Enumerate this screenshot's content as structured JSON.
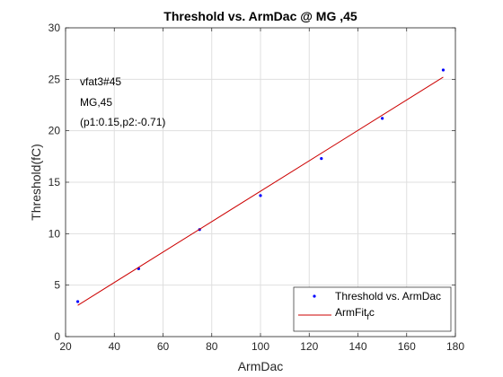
{
  "chart_data": {
    "type": "scatter",
    "title": "Threshold vs. ArmDac @ MG ,45",
    "xlabel": "ArmDac",
    "ylabel": "Threshold(fC)",
    "xlim": [
      20,
      180
    ],
    "ylim": [
      0,
      30
    ],
    "xticks": [
      "20",
      "40",
      "60",
      "80",
      "100",
      "120",
      "140",
      "160",
      "180"
    ],
    "yticks": [
      "0",
      "5",
      "10",
      "15",
      "20",
      "25",
      "30"
    ],
    "grid": true,
    "legend_position": "bottom-right",
    "annotations": [
      "vfat3#45",
      "MG,45",
      "(p1:0.15,p2:-0.71)"
    ],
    "series": [
      {
        "name": "Threshold vs. ArmDac",
        "kind": "points",
        "color": "#0000ff",
        "x": [
          25,
          50,
          75,
          100,
          125,
          150,
          175
        ],
        "y": [
          3.4,
          6.6,
          10.4,
          13.7,
          17.3,
          21.2,
          25.9
        ]
      },
      {
        "name": "ArmFit",
        "name_sub": "f",
        "name_suffix": "c",
        "kind": "line",
        "color": "#cc0000",
        "x": [
          25,
          175
        ],
        "y": [
          3.04,
          25.21
        ]
      }
    ]
  }
}
